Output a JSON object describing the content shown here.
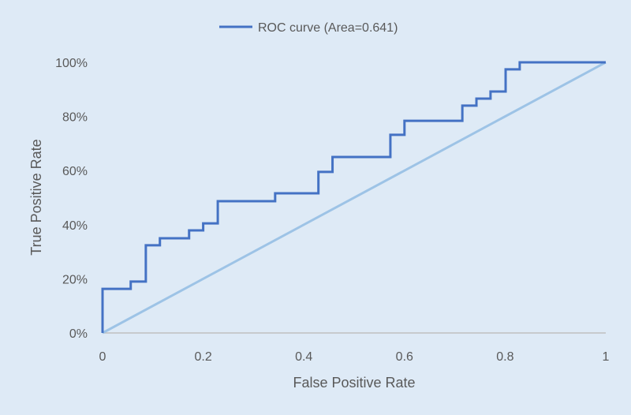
{
  "chart_data": {
    "type": "line",
    "title": "",
    "xlabel": "False Positive Rate",
    "ylabel": "True Positive Rate",
    "xlim": [
      0,
      1
    ],
    "ylim": [
      0,
      100
    ],
    "x_ticks": [
      "0",
      "0.2",
      "0.4",
      "0.6",
      "0.8",
      "1"
    ],
    "x_tick_values": [
      0,
      0.2,
      0.4,
      0.6,
      0.8,
      1
    ],
    "y_ticks": [
      "0%",
      "20%",
      "40%",
      "60%",
      "80%",
      "100%"
    ],
    "y_tick_values": [
      0,
      20,
      40,
      60,
      80,
      100
    ],
    "grid": false,
    "legend_position": "top-center",
    "series": [
      {
        "name": "ROC curve (Area=0.641)",
        "color": "#4472c4",
        "step": true,
        "points": [
          [
            0,
            0
          ],
          [
            0,
            16.3
          ],
          [
            0.056,
            16.3
          ],
          [
            0.056,
            19.0
          ],
          [
            0.086,
            19.0
          ],
          [
            0.086,
            32.4
          ],
          [
            0.114,
            32.4
          ],
          [
            0.114,
            35.0
          ],
          [
            0.172,
            35.0
          ],
          [
            0.172,
            37.9
          ],
          [
            0.2,
            37.9
          ],
          [
            0.2,
            40.5
          ],
          [
            0.229,
            40.5
          ],
          [
            0.229,
            48.7
          ],
          [
            0.343,
            48.7
          ],
          [
            0.343,
            51.6
          ],
          [
            0.429,
            51.6
          ],
          [
            0.429,
            59.5
          ],
          [
            0.457,
            59.5
          ],
          [
            0.457,
            65.0
          ],
          [
            0.572,
            65.0
          ],
          [
            0.572,
            73.2
          ],
          [
            0.6,
            73.2
          ],
          [
            0.6,
            78.4
          ],
          [
            0.715,
            78.4
          ],
          [
            0.715,
            84.0
          ],
          [
            0.743,
            84.0
          ],
          [
            0.743,
            86.6
          ],
          [
            0.771,
            86.6
          ],
          [
            0.771,
            89.2
          ],
          [
            0.801,
            89.2
          ],
          [
            0.801,
            97.4
          ],
          [
            0.829,
            97.4
          ],
          [
            0.829,
            100
          ],
          [
            1,
            100
          ]
        ]
      },
      {
        "name": "diagonal",
        "color": "#9dc3e6",
        "points": [
          [
            0,
            0
          ],
          [
            1,
            100
          ]
        ]
      }
    ]
  }
}
